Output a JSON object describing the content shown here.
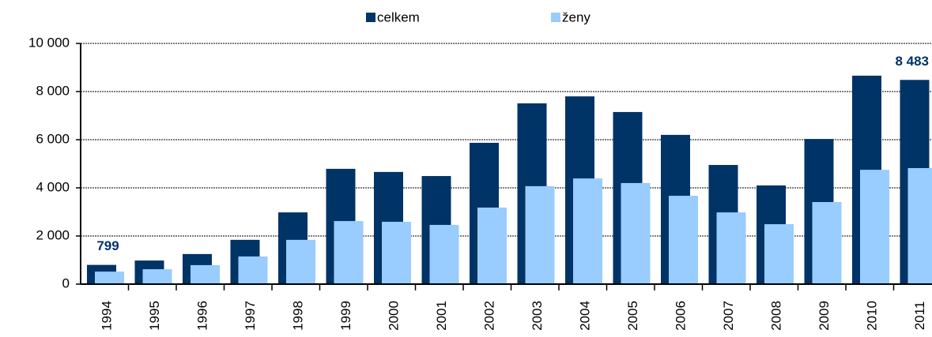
{
  "chart_data": {
    "type": "bar",
    "categories": [
      "1994",
      "1995",
      "1996",
      "1997",
      "1998",
      "1999",
      "2000",
      "2001",
      "2002",
      "2003",
      "2004",
      "2005",
      "2006",
      "2007",
      "2008",
      "2009",
      "2010",
      "2011"
    ],
    "series": [
      {
        "name": "celkem",
        "color": "#003366",
        "values": [
          799,
          980,
          1250,
          1840,
          2980,
          4790,
          4660,
          4490,
          5870,
          7510,
          7800,
          7150,
          6200,
          4950,
          4100,
          6030,
          8660,
          8483
        ],
        "value_labels": [
          "799",
          null,
          null,
          null,
          null,
          null,
          null,
          null,
          null,
          null,
          null,
          null,
          null,
          null,
          null,
          null,
          null,
          "8 483"
        ]
      },
      {
        "name": "ženy",
        "color": "#99ccff",
        "values": [
          520,
          620,
          790,
          1150,
          1840,
          2620,
          2590,
          2460,
          3180,
          4070,
          4390,
          4200,
          3670,
          2980,
          2490,
          3410,
          4750,
          4820
        ]
      }
    ],
    "ylim": [
      0,
      10000
    ],
    "yticks": [
      0,
      {
        "value": 2000,
        "label": "2 000"
      },
      {
        "value": 4000,
        "label": "4 000"
      },
      {
        "value": 6000,
        "label": "6 000"
      },
      {
        "value": 8000,
        "label": "8 000"
      },
      {
        "value": 10000,
        "label": "10 000"
      }
    ],
    "grid": true,
    "legend": "top"
  }
}
